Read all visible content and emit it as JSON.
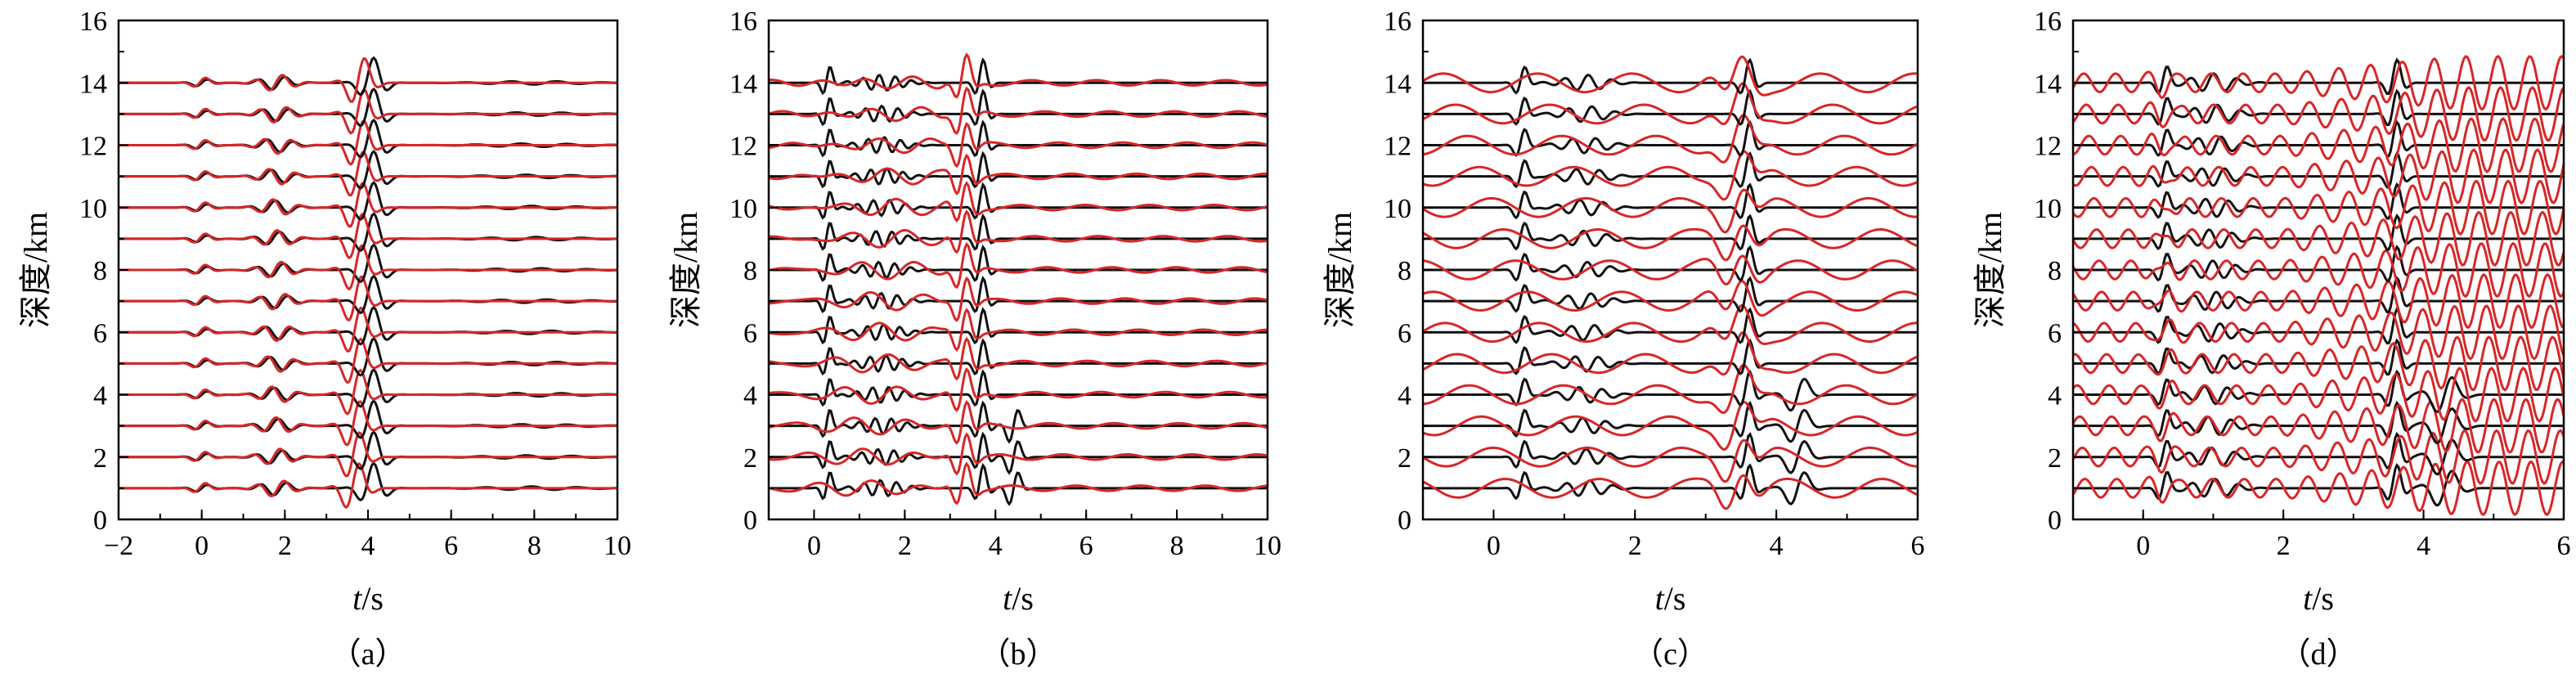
{
  "figure": {
    "series_colors": {
      "observed": "#111111",
      "synthetic": "#d62728"
    }
  },
  "chart_data": [
    {
      "type": "line",
      "caption": "（a）",
      "xlabel_italic": "t",
      "xlabel_unit": "/s",
      "ylabel": "深度/km",
      "xlim": [
        -2,
        10
      ],
      "ylim": [
        0,
        16
      ],
      "xticks": [
        -2,
        0,
        2,
        4,
        6,
        8,
        10
      ],
      "xtick_labels": [
        "−2",
        "0",
        "2",
        "4",
        "6",
        "8",
        "10"
      ],
      "yticks": [
        0,
        2,
        4,
        6,
        8,
        10,
        12,
        14,
        16
      ],
      "ytick_labels": [
        "0",
        "2",
        "4",
        "6",
        "8",
        "10",
        "12",
        "14",
        "16"
      ],
      "trace_baselines_km": [
        1,
        2,
        3,
        4,
        5,
        6,
        7,
        8,
        9,
        10,
        11,
        12,
        13,
        14
      ],
      "series": [
        {
          "role": "observed",
          "color": "#111111",
          "main_arrival_s": 4.1
        },
        {
          "role": "synthetic",
          "color": "#d62728",
          "main_arrival_s": 3.8
        }
      ]
    },
    {
      "type": "line",
      "caption": "（b）",
      "xlabel_italic": "t",
      "xlabel_unit": "/s",
      "ylabel": "深度/km",
      "xlim": [
        -1,
        10
      ],
      "ylim": [
        0,
        16
      ],
      "xticks": [
        0,
        2,
        4,
        6,
        8,
        10
      ],
      "xtick_labels": [
        "0",
        "2",
        "4",
        "6",
        "8",
        "10"
      ],
      "yticks": [
        0,
        2,
        4,
        6,
        8,
        10,
        12,
        14,
        16
      ],
      "ytick_labels": [
        "0",
        "2",
        "4",
        "6",
        "8",
        "10",
        "12",
        "14",
        "16"
      ],
      "trace_baselines_km": [
        1,
        2,
        3,
        4,
        5,
        6,
        7,
        8,
        9,
        10,
        11,
        12,
        13,
        14
      ],
      "series": [
        {
          "role": "observed",
          "color": "#111111",
          "main_arrival_s": 3.7
        },
        {
          "role": "synthetic",
          "color": "#d62728",
          "main_arrival_s": 3.3
        }
      ]
    },
    {
      "type": "line",
      "caption": "（c）",
      "xlabel_italic": "t",
      "xlabel_unit": "/s",
      "ylabel": "深度/km",
      "xlim": [
        -1,
        6
      ],
      "ylim": [
        0,
        16
      ],
      "xticks": [
        0,
        2,
        4,
        6
      ],
      "xtick_labels": [
        "0",
        "2",
        "4",
        "6"
      ],
      "yticks": [
        0,
        2,
        4,
        6,
        8,
        10,
        12,
        14,
        16
      ],
      "ytick_labels": [
        "0",
        "2",
        "4",
        "6",
        "8",
        "10",
        "12",
        "14",
        "16"
      ],
      "trace_baselines_km": [
        1,
        2,
        3,
        4,
        5,
        6,
        7,
        8,
        9,
        10,
        11,
        12,
        13,
        14
      ],
      "series": [
        {
          "role": "observed",
          "color": "#111111",
          "main_arrival_s": 3.6
        },
        {
          "role": "synthetic",
          "color": "#d62728",
          "main_arrival_s": 3.45
        }
      ]
    },
    {
      "type": "line",
      "caption": "（d）",
      "xlabel_italic": "t",
      "xlabel_unit": "/s",
      "ylabel": "深度/km",
      "xlim": [
        -1,
        6
      ],
      "ylim": [
        0,
        16
      ],
      "xticks": [
        0,
        2,
        4,
        6
      ],
      "xtick_labels": [
        "0",
        "2",
        "4",
        "6"
      ],
      "yticks": [
        0,
        2,
        4,
        6,
        8,
        10,
        12,
        14,
        16
      ],
      "ytick_labels": [
        "0",
        "2",
        "4",
        "6",
        "8",
        "10",
        "12",
        "14",
        "16"
      ],
      "trace_baselines_km": [
        1,
        2,
        3,
        4,
        5,
        6,
        7,
        8,
        9,
        10,
        11,
        12,
        13,
        14
      ],
      "series": [
        {
          "role": "observed",
          "color": "#111111",
          "main_arrival_s": 3.6
        },
        {
          "role": "synthetic",
          "color": "#d62728",
          "main_arrival_s": 3.5
        }
      ]
    }
  ]
}
